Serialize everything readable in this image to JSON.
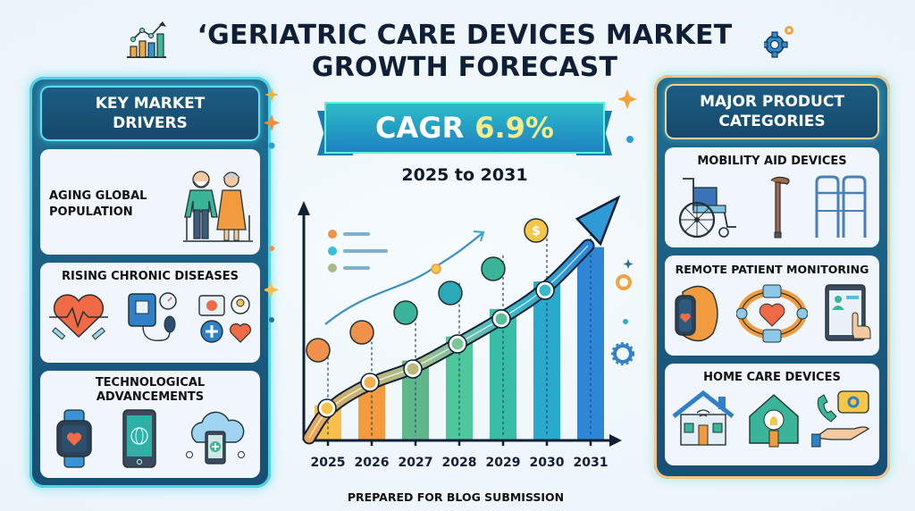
{
  "title": "‘GERIATRIC CARE DEVICES MARKET GROWTH FORECAST",
  "title_lines": [
    "‘GERIATRIC CARE DEVICES MARKET",
    "GROWTH FORECAST"
  ],
  "cagr": {
    "label": "CAGR",
    "value": "6.9%",
    "period": "2025 to 2031"
  },
  "left_panel": {
    "heading": [
      "KEY MARKET",
      "DRIVERS"
    ],
    "cards": [
      {
        "title": [
          "AGING GLOBAL",
          "POPULATION"
        ],
        "icons": [
          "elderly-couple-icon"
        ]
      },
      {
        "title": [
          "RISING CHRONIC DISEASES"
        ],
        "icons": [
          "heart-rate-icon",
          "blood-pressure-monitor-icon",
          "medical-kit-icon"
        ]
      },
      {
        "title": [
          "TECHNOLOGICAL",
          "ADVANCEMENTS"
        ],
        "icons": [
          "smartwatch-icon",
          "smartphone-icon",
          "cloud-health-icon"
        ]
      }
    ]
  },
  "right_panel": {
    "heading": [
      "MAJOR PRODUCT",
      "CATEGORIES"
    ],
    "cards": [
      {
        "title": [
          "MOBILITY AID DEVICES"
        ],
        "icons": [
          "wheelchair-icon",
          "cane-icon",
          "walker-icon"
        ]
      },
      {
        "title": [
          "REMOTE PATIENT MONITORING"
        ],
        "icons": [
          "fitness-band-icon",
          "heart-monitor-ring-icon",
          "tablet-telehealth-icon"
        ]
      },
      {
        "title": [
          "HOME CARE DEVICES"
        ],
        "icons": [
          "smart-home-icon",
          "smart-bulb-home-icon",
          "call-support-hand-icon"
        ]
      }
    ]
  },
  "chart_data": {
    "type": "bar",
    "title": "Growth Forecast",
    "categories": [
      "2025",
      "2026",
      "2027",
      "2028",
      "2029",
      "2030",
      "2031"
    ],
    "values": [
      1.0,
      1.6,
      2.3,
      3.0,
      3.8,
      4.6,
      5.6
    ],
    "xlabel": "",
    "ylabel": "",
    "ylim": [
      0,
      6.5
    ],
    "note": "Illustrative bars with rising trend arrow; no numeric axis labels shown",
    "bar_colors": [
      "#f8c04a",
      "#f59a3d",
      "#5fb88a",
      "#4ec79a",
      "#38bda6",
      "#2aa9cf",
      "#2d86d6"
    ]
  },
  "footer": "PREPARED FOR BLOG SUBMISSION",
  "colors": {
    "panel_blue": "#1f6f93",
    "glow_cyan": "#4fd3ea",
    "accent_orange": "#f08a3c",
    "accent_yellow": "#f4eb8a",
    "title_navy": "#0f1f36"
  }
}
